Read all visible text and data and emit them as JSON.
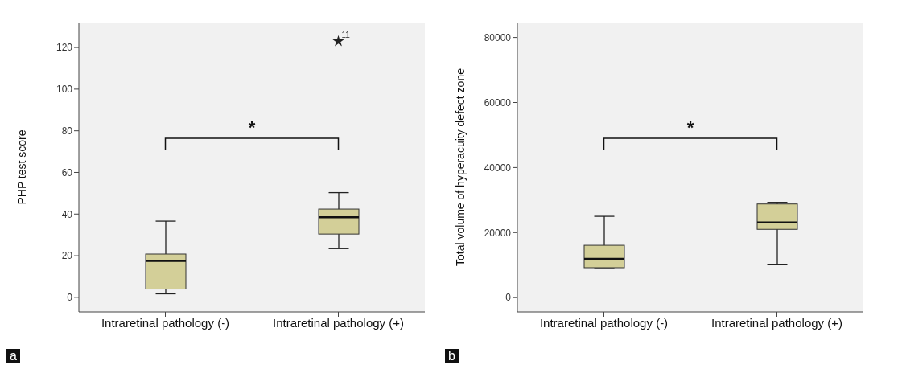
{
  "chart_data": [
    {
      "type": "box",
      "ylabel": "PHP test score",
      "categories": [
        "Intraretinal pathology (-)",
        "Intraretinal pathology (+)"
      ],
      "color": "#d3cf98",
      "marker": "star",
      "boxes": [
        {
          "low": 1.7,
          "q1": 4,
          "median": 17.5,
          "q3": 20.8,
          "high": 36.6
        },
        {
          "low": 23.4,
          "q1": 30.4,
          "median": 38.5,
          "q3": 42.4,
          "high": 50.3,
          "outliers": [
            123
          ]
        }
      ],
      "ylim": [
        -7,
        132
      ],
      "yticks": [
        0,
        20,
        40,
        60,
        80,
        100,
        120
      ],
      "grid": false,
      "legend": false,
      "annotations": [
        "*",
        "a",
        "11"
      ]
    },
    {
      "type": "box",
      "ylabel": "Total volume of hyperacuity defect zone",
      "categories": [
        "Intraretinal pathology (-)",
        "Intraretinal pathology (+)"
      ],
      "color": "#d3cf98",
      "boxes": [
        {
          "low": 9200,
          "q1": 9200,
          "median": 11900,
          "q3": 16100,
          "high": 25000
        },
        {
          "low": 10100,
          "q1": 21000,
          "median": 23100,
          "q3": 28800,
          "high": 29300
        }
      ],
      "ylim": [
        -4400,
        84600
      ],
      "yticks": [
        0,
        20000,
        40000,
        60000,
        80000
      ],
      "grid": false,
      "legend": false,
      "annotations": [
        "*",
        "b"
      ]
    }
  ]
}
